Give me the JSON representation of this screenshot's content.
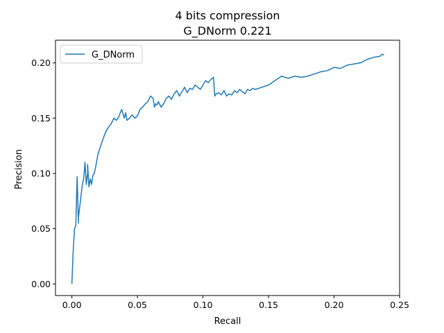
{
  "chart_data": {
    "type": "line",
    "title": "4 bits compression",
    "subtitle": "G_DNorm 0.221",
    "xlabel": "Recall",
    "ylabel": "Precision",
    "xlim": [
      -0.0125,
      0.25
    ],
    "ylim": [
      -0.0105,
      0.2205
    ],
    "xticks": [
      0.0,
      0.05,
      0.1,
      0.15,
      0.2,
      0.25
    ],
    "xtick_labels": [
      "0.00",
      "0.05",
      "0.10",
      "0.15",
      "0.20",
      "0.25"
    ],
    "yticks": [
      0.0,
      0.05,
      0.1,
      0.15,
      0.2
    ],
    "ytick_labels": [
      "0.00",
      "0.05",
      "0.10",
      "0.15",
      "0.20"
    ],
    "grid": false,
    "legend_position": "top-left",
    "series": [
      {
        "name": "G_DNorm",
        "color": "#1f77b4",
        "x": [
          0.0,
          0.001,
          0.002,
          0.003,
          0.004,
          0.005,
          0.005,
          0.006,
          0.007,
          0.008,
          0.009,
          0.01,
          0.011,
          0.012,
          0.012,
          0.013,
          0.014,
          0.015,
          0.016,
          0.017,
          0.018,
          0.02,
          0.022,
          0.024,
          0.026,
          0.028,
          0.03,
          0.032,
          0.034,
          0.036,
          0.038,
          0.04,
          0.041,
          0.042,
          0.044,
          0.046,
          0.048,
          0.05,
          0.052,
          0.054,
          0.056,
          0.058,
          0.06,
          0.062,
          0.063,
          0.064,
          0.065,
          0.066,
          0.068,
          0.07,
          0.072,
          0.074,
          0.076,
          0.078,
          0.08,
          0.082,
          0.084,
          0.086,
          0.088,
          0.09,
          0.092,
          0.094,
          0.096,
          0.098,
          0.1,
          0.102,
          0.104,
          0.106,
          0.108,
          0.109,
          0.11,
          0.112,
          0.114,
          0.116,
          0.118,
          0.12,
          0.122,
          0.124,
          0.126,
          0.128,
          0.13,
          0.132,
          0.134,
          0.136,
          0.138,
          0.14,
          0.145,
          0.15,
          0.155,
          0.16,
          0.165,
          0.17,
          0.175,
          0.18,
          0.185,
          0.19,
          0.195,
          0.2,
          0.205,
          0.21,
          0.215,
          0.22,
          0.225,
          0.23,
          0.235,
          0.237,
          0.238
        ],
        "y": [
          0.0,
          0.03,
          0.05,
          0.053,
          0.097,
          0.055,
          0.06,
          0.07,
          0.08,
          0.09,
          0.095,
          0.11,
          0.09,
          0.1,
          0.108,
          0.088,
          0.095,
          0.09,
          0.098,
          0.1,
          0.105,
          0.118,
          0.125,
          0.132,
          0.138,
          0.142,
          0.145,
          0.15,
          0.148,
          0.152,
          0.158,
          0.15,
          0.155,
          0.148,
          0.15,
          0.153,
          0.15,
          0.152,
          0.158,
          0.16,
          0.163,
          0.165,
          0.17,
          0.168,
          0.16,
          0.163,
          0.162,
          0.165,
          0.16,
          0.163,
          0.168,
          0.17,
          0.167,
          0.172,
          0.175,
          0.17,
          0.174,
          0.178,
          0.173,
          0.177,
          0.176,
          0.18,
          0.178,
          0.176,
          0.18,
          0.184,
          0.182,
          0.185,
          0.187,
          0.17,
          0.172,
          0.173,
          0.171,
          0.175,
          0.17,
          0.172,
          0.171,
          0.175,
          0.173,
          0.176,
          0.174,
          0.172,
          0.176,
          0.175,
          0.177,
          0.176,
          0.178,
          0.18,
          0.184,
          0.188,
          0.186,
          0.188,
          0.187,
          0.188,
          0.19,
          0.192,
          0.193,
          0.196,
          0.195,
          0.198,
          0.199,
          0.2,
          0.203,
          0.205,
          0.206,
          0.208,
          0.207
        ]
      }
    ]
  }
}
